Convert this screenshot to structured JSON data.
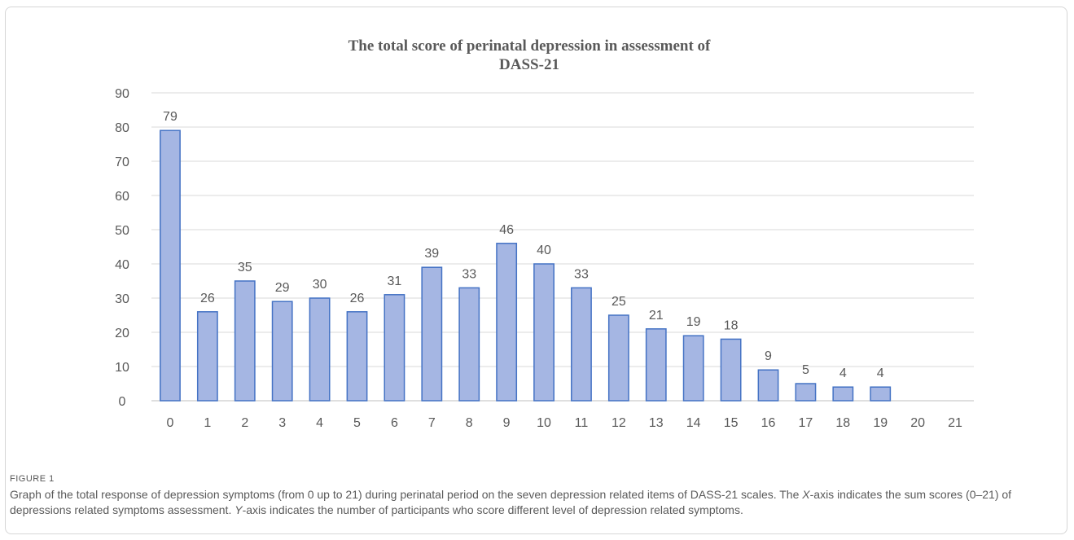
{
  "chart_data": {
    "type": "bar",
    "title_lines": [
      "The total score of perinatal depression in assessment of",
      "DASS-21"
    ],
    "categories": [
      "0",
      "1",
      "2",
      "3",
      "4",
      "5",
      "6",
      "7",
      "8",
      "9",
      "10",
      "11",
      "12",
      "13",
      "14",
      "15",
      "16",
      "17",
      "18",
      "19",
      "20",
      "21"
    ],
    "values": [
      79,
      26,
      35,
      29,
      30,
      26,
      31,
      39,
      33,
      46,
      40,
      33,
      25,
      21,
      19,
      18,
      9,
      5,
      4,
      4,
      null,
      null
    ],
    "ylim": [
      0,
      90
    ],
    "yticks": [
      0,
      10,
      20,
      30,
      40,
      50,
      60,
      70,
      80,
      90
    ],
    "grid": true,
    "data_labels": true,
    "bar_color": "#a5b6e3",
    "bar_edge_color": "#4472c4",
    "grid_color": "#d9d9d9"
  },
  "caption": {
    "label": "FIGURE 1",
    "text_parts": [
      "Graph of the total response of depression symptoms (from 0 up to 21) during perinatal period on the seven depression related items of DASS-21 scales. The ",
      "X",
      "-axis indicates the sum scores (0–21) of depressions related symptoms assessment. ",
      "Y",
      "-axis indicates the number of participants who score different level of depression related symptoms."
    ]
  }
}
